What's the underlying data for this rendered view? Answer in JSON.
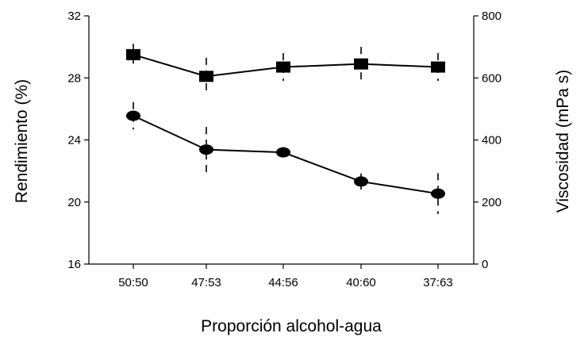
{
  "chart_data": {
    "type": "line",
    "xlabel": "Proporción alcohol-agua",
    "ylabel_left": "Rendimiento (%)",
    "ylabel_right": "Viscosidad (mPa s)",
    "categories": [
      "50:50",
      "47:53",
      "44:56",
      "40:60",
      "37:63"
    ],
    "ylim_left": [
      16,
      32
    ],
    "yticks_left": [
      "16",
      "20",
      "24",
      "28",
      "32"
    ],
    "ylim_right": [
      0,
      800
    ],
    "yticks_right": [
      "0",
      "200",
      "400",
      "600",
      "800"
    ],
    "grid": false,
    "series": [
      {
        "axis": "left",
        "marker": "square",
        "values": [
          29.5,
          28.1,
          28.7,
          28.9,
          28.7
        ],
        "error": [
          0.7,
          1.2,
          0.9,
          1.1,
          0.9
        ]
      },
      {
        "axis": "right",
        "marker": "ellipse",
        "values": [
          478,
          369,
          360,
          266,
          227
        ],
        "error": [
          44,
          73,
          17,
          26,
          66
        ]
      }
    ]
  }
}
